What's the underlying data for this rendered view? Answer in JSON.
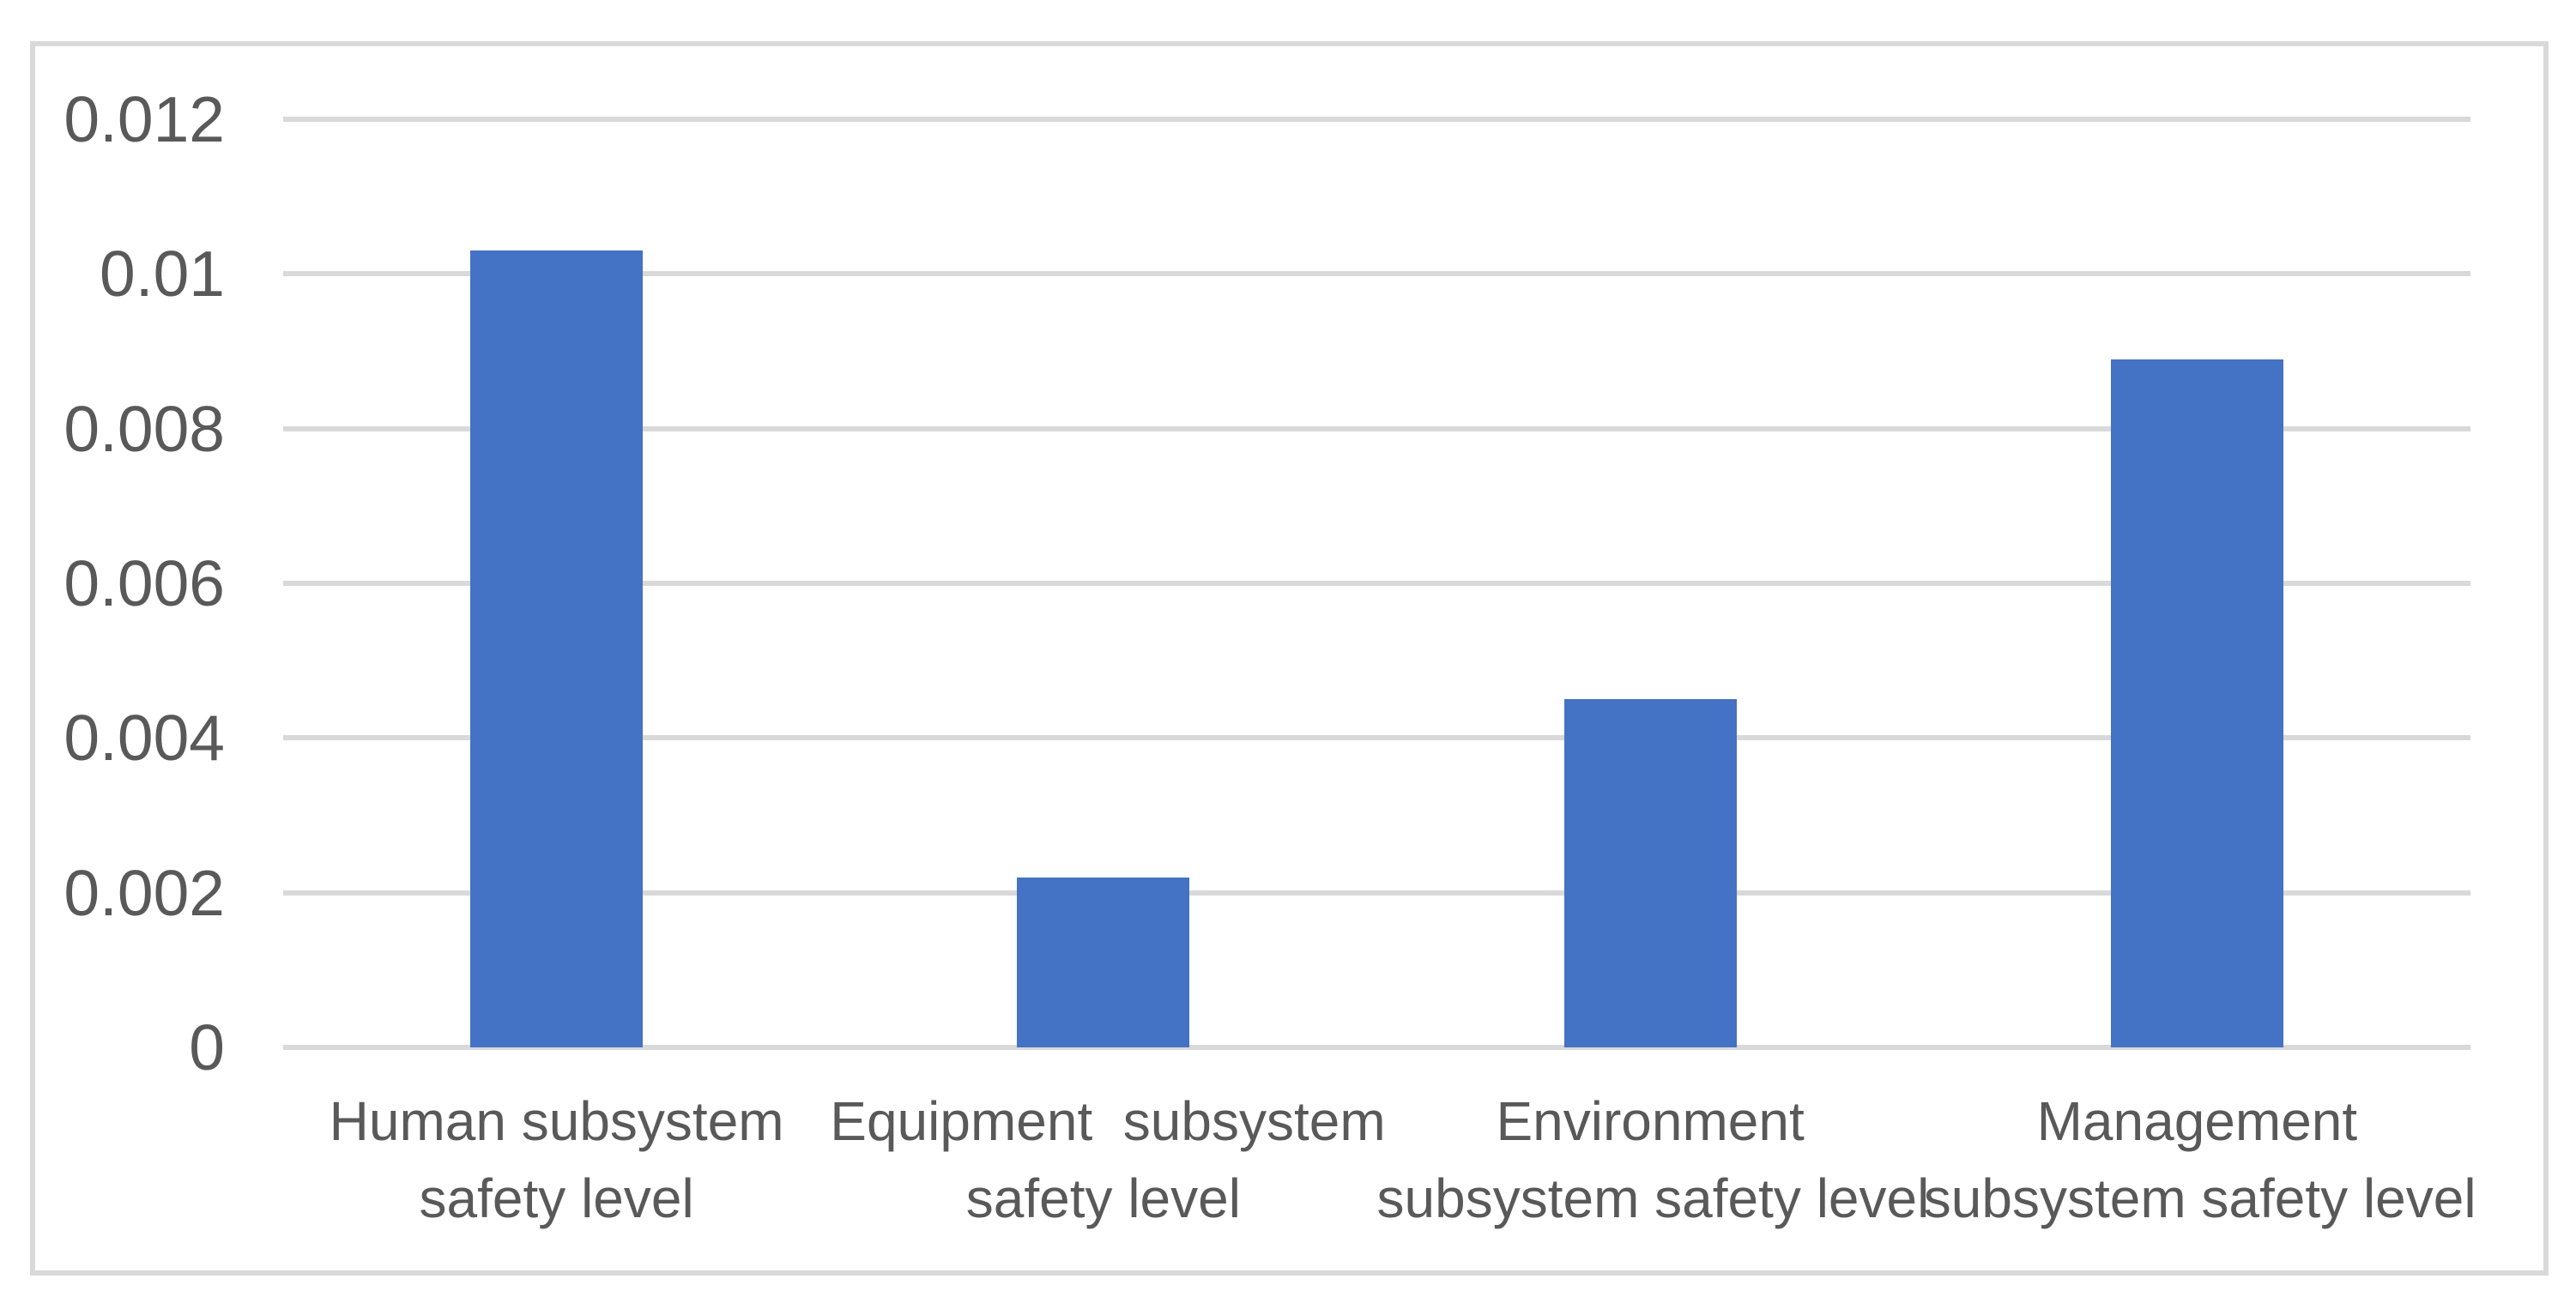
{
  "chart_data": {
    "type": "bar",
    "title": "",
    "xlabel": "",
    "ylabel": "",
    "categories": [
      {
        "label": "Human subsystem safety level",
        "lines": [
          "Human subsystem",
          "safety level"
        ]
      },
      {
        "label": "Equipment  subsystem safety level",
        "lines": [
          "Equipment  subsystem",
          "safety level"
        ]
      },
      {
        "label": "Environment subsystem safety level",
        "lines": [
          "Environment",
          "subsystem safety level"
        ]
      },
      {
        "label": "Management subsystem safety level",
        "lines": [
          "Management",
          "subsystem safety level"
        ]
      }
    ],
    "values": [
      0.0103,
      0.0022,
      0.0045,
      0.0089
    ],
    "ylim": [
      0,
      0.012
    ],
    "ytick_step": 0.002,
    "yticks": [
      "0",
      "0.002",
      "0.004",
      "0.006",
      "0.008",
      "0.01",
      "0.012"
    ],
    "grid": true,
    "legend": "none",
    "colors": {
      "bar": "#4472C4",
      "gridline": "#d9d9d9",
      "frame_border": "#d9d9d9",
      "tick_label": "#595959",
      "background": "#ffffff"
    }
  }
}
